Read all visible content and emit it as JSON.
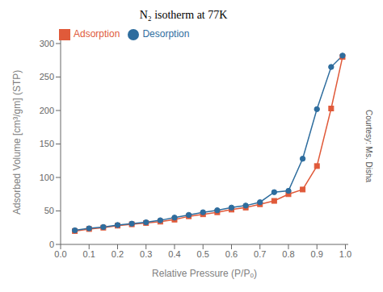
{
  "chart_data": {
    "type": "line",
    "title": "N₂ isotherm at 77K",
    "x_label": "Relative Pressure (P/Pₒ)",
    "y_label": "Adsorbed Volume [cm³/gm] (STP)",
    "annotations": [
      "Courtesy: Ms. Disha"
    ],
    "x": [
      0.05,
      0.1,
      0.15,
      0.2,
      0.25,
      0.3,
      0.35,
      0.4,
      0.45,
      0.5,
      0.55,
      0.6,
      0.65,
      0.7,
      0.75,
      0.8,
      0.85,
      0.9,
      0.95,
      0.99
    ],
    "series": [
      {
        "name": "Adsorption",
        "color": "#e05a3a",
        "marker": "square",
        "values": [
          20,
          23,
          25,
          28,
          30,
          32,
          34,
          37,
          42,
          45,
          48,
          52,
          55,
          60,
          65,
          75,
          82,
          117,
          203,
          280
        ]
      },
      {
        "name": "Desorption",
        "color": "#2e6d9e",
        "marker": "circle",
        "values": [
          21,
          24,
          26,
          29,
          31,
          33,
          36,
          40,
          44,
          48,
          51,
          55,
          58,
          63,
          78,
          80,
          128,
          202,
          265,
          282
        ]
      }
    ],
    "xlim": [
      0.0,
      1.01
    ],
    "ylim": [
      0,
      305
    ],
    "xticks": [
      {
        "value": 0,
        "label": "0.0"
      },
      0.1,
      0.2,
      0.3,
      0.4,
      0.5,
      0.6,
      0.7,
      0.8,
      0.9,
      {
        "value": 1,
        "label": "1.0"
      }
    ],
    "yticks": [
      0,
      50,
      100,
      150,
      200,
      250,
      300
    ],
    "legend": "upper left",
    "grid": false
  }
}
